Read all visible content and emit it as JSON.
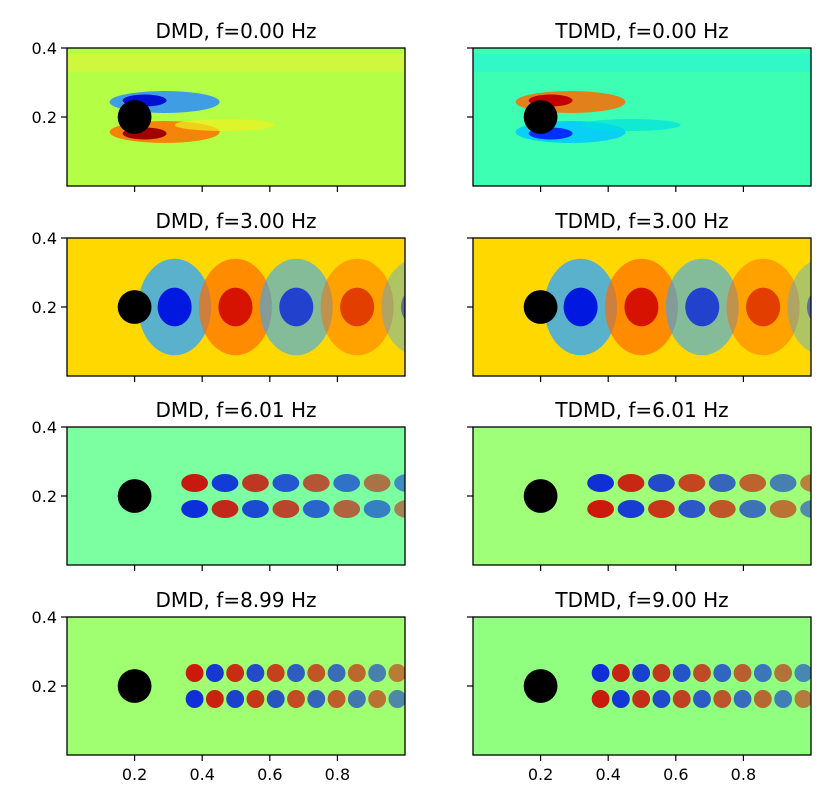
{
  "chart_data": {
    "type": "heatmap",
    "colormap": "jet",
    "layout": "4 rows x 2 columns of filled-contour panels",
    "shared_x_ticks": [
      0.2,
      0.4,
      0.6,
      0.8
    ],
    "shared_x_tick_labels": [
      "0.2",
      "0.4",
      "0.6",
      "0.8"
    ],
    "shared_y_ticks": [
      0.2,
      0.4
    ],
    "shared_y_tick_labels": [
      "0.2",
      "0.4"
    ],
    "xlim": [
      0.0,
      1.0
    ],
    "ylim": [
      0.0,
      0.4
    ],
    "obstacle": {
      "shape": "circle",
      "center": [
        0.2,
        0.2
      ],
      "radius": 0.05,
      "color": "#000000"
    },
    "panels": [
      {
        "title": "DMD, f=0.00 Hz",
        "method": "DMD",
        "frequency_hz": 0.0,
        "mode": "mean",
        "background": "#b4ff46",
        "sign": 1,
        "wavelength": 0.0
      },
      {
        "title": "TDMD, f=0.00 Hz",
        "method": "TDMD",
        "frequency_hz": 0.0,
        "mode": "mean",
        "background": "#3cffb4",
        "sign": -1,
        "wavelength": 0.0
      },
      {
        "title": "DMD, f=3.00 Hz",
        "method": "DMD",
        "frequency_hz": 3.0,
        "mode": "wake",
        "background": "#ffd800",
        "sign": 1,
        "wavelength": 0.36
      },
      {
        "title": "TDMD, f=3.00 Hz",
        "method": "TDMD",
        "frequency_hz": 3.0,
        "mode": "wake",
        "background": "#ffd800",
        "sign": 1,
        "wavelength": 0.36
      },
      {
        "title": "DMD, f=6.01 Hz",
        "method": "DMD",
        "frequency_hz": 6.01,
        "mode": "wake",
        "background": "#7cffa0",
        "sign": 1,
        "wavelength": 0.18
      },
      {
        "title": "TDMD, f=6.01 Hz",
        "method": "TDMD",
        "frequency_hz": 6.01,
        "mode": "wake",
        "background": "#a0ff78",
        "sign": -1,
        "wavelength": 0.18
      },
      {
        "title": "DMD, f=8.99 Hz",
        "method": "DMD",
        "frequency_hz": 8.99,
        "mode": "wake",
        "background": "#a0ff70",
        "sign": 1,
        "wavelength": 0.12
      },
      {
        "title": "TDMD, f=9.00 Hz",
        "method": "TDMD",
        "frequency_hz": 9.0,
        "mode": "wake",
        "background": "#90ff80",
        "sign": -1,
        "wavelength": 0.12
      }
    ]
  }
}
